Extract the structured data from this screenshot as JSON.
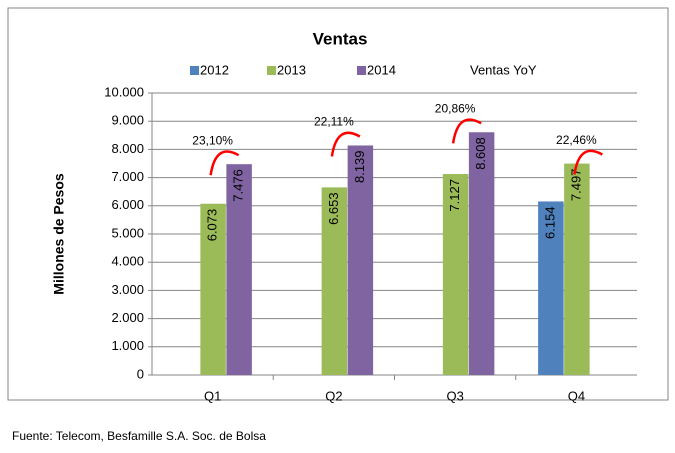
{
  "chart_data": {
    "type": "bar",
    "title": "Ventas",
    "y_label": "Millones de Pesos",
    "source": "Fuente: Telecom, Besfamille S.A. Soc. de Bolsa",
    "categories": [
      "Q1",
      "Q2",
      "Q3",
      "Q4"
    ],
    "series": [
      {
        "name": "2012",
        "color": "#4f81bd",
        "values": [
          null,
          null,
          null,
          6154
        ],
        "value_labels": [
          null,
          null,
          null,
          "6.154"
        ]
      },
      {
        "name": "2013",
        "color": "#9bbb59",
        "values": [
          6073,
          6653,
          7127,
          7497
        ],
        "value_labels": [
          "6.073",
          "6.653",
          "7.127",
          "7.497"
        ]
      },
      {
        "name": "2014",
        "color": "#8064a2",
        "values": [
          7476,
          8139,
          8608,
          null
        ],
        "value_labels": [
          "7.476",
          "8.139",
          "8.608",
          null
        ]
      }
    ],
    "yoy": {
      "name": "Ventas YoY",
      "color": "#ff0000",
      "values": [
        23.1,
        22.11,
        20.86,
        22.46
      ],
      "value_labels": [
        "23,10%",
        "22,11%",
        "20,86%",
        "22,46%"
      ]
    },
    "ylim": [
      0,
      10000
    ],
    "yticks": [
      0,
      {
        "value": 1000,
        "label": "1.000"
      },
      {
        "value": 2000,
        "label": "2.000"
      },
      {
        "value": 3000,
        "label": "3.000"
      },
      {
        "value": 4000,
        "label": "4.000"
      },
      {
        "value": 5000,
        "label": "5.000"
      },
      {
        "value": 6000,
        "label": "6.000"
      },
      {
        "value": 7000,
        "label": "7.000"
      },
      {
        "value": 8000,
        "label": "8.000"
      },
      {
        "value": 9000,
        "label": "9.000"
      },
      {
        "value": 10000,
        "label": "10.000"
      }
    ],
    "grid": true
  }
}
